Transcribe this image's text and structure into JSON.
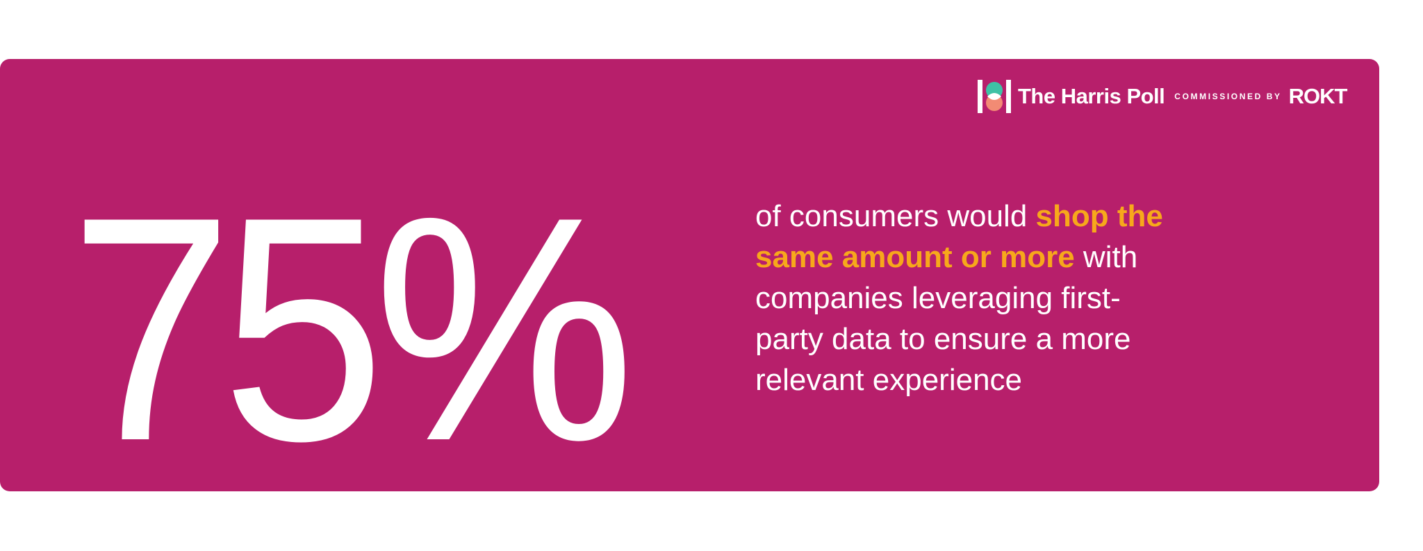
{
  "logo": {
    "brand": "The Harris Poll",
    "commissioned": "COMMISSIONED BY",
    "sponsor": "ROKT"
  },
  "stat": "75%",
  "statement": {
    "before": "of consumers would ",
    "highlight": "shop the same amount or more",
    "after": " with companies leveraging first-party data to ensure a more relevant experience"
  }
}
